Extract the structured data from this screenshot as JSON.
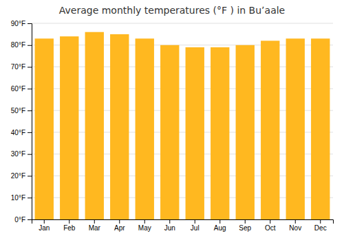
{
  "chart_data": {
    "type": "bar",
    "title": "Average monthly temperatures (°F ) in Buʼaale",
    "categories": [
      "Jan",
      "Feb",
      "Mar",
      "Apr",
      "May",
      "Jun",
      "Jul",
      "Aug",
      "Sep",
      "Oct",
      "Nov",
      "Dec"
    ],
    "values": [
      83,
      84,
      86,
      85,
      83,
      80,
      79,
      79,
      80,
      82,
      83,
      83
    ],
    "color": "#FFB820",
    "ylim": [
      0,
      90
    ],
    "yticks": [
      {
        "value": 0,
        "label": "0°F"
      },
      {
        "value": 10,
        "label": "10°F"
      },
      {
        "value": 20,
        "label": "20°F"
      },
      {
        "value": 30,
        "label": "30°F"
      },
      {
        "value": 40,
        "label": "40°F"
      },
      {
        "value": 50,
        "label": "50°F"
      },
      {
        "value": 60,
        "label": "60°F"
      },
      {
        "value": 70,
        "label": "70°F"
      },
      {
        "value": 80,
        "label": "80°F"
      },
      {
        "value": 90,
        "label": "90°F"
      }
    ],
    "grid": true
  }
}
